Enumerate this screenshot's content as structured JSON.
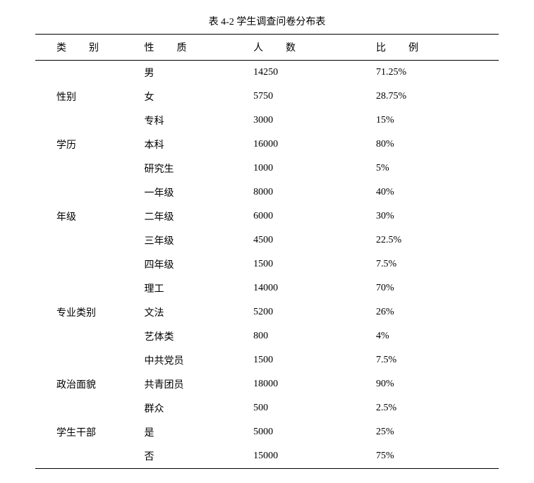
{
  "title": "表 4-2  学生调查问卷分布表",
  "headers": {
    "category": "类别",
    "property": "性质",
    "count": "人数",
    "ratio": "比例"
  },
  "groups": [
    {
      "category": "性别",
      "label_row": 1,
      "rows": [
        {
          "property": "男",
          "count": "14250",
          "ratio": "71.25%"
        },
        {
          "property": "女",
          "count": "5750",
          "ratio": "28.75%"
        }
      ]
    },
    {
      "category": "学历",
      "label_row": 1,
      "rows": [
        {
          "property": "专科",
          "count": "3000",
          "ratio": "15%"
        },
        {
          "property": "本科",
          "count": "16000",
          "ratio": "80%"
        },
        {
          "property": "研究生",
          "count": "1000",
          "ratio": "5%"
        }
      ]
    },
    {
      "category": "年级",
      "label_row": 1,
      "rows": [
        {
          "property": "一年级",
          "count": "8000",
          "ratio": "40%"
        },
        {
          "property": "二年级",
          "count": "6000",
          "ratio": "30%"
        },
        {
          "property": "三年级",
          "count": "4500",
          "ratio": "22.5%"
        },
        {
          "property": "四年级",
          "count": "1500",
          "ratio": "7.5%"
        }
      ]
    },
    {
      "category": "专业类别",
      "label_row": 1,
      "rows": [
        {
          "property": "理工",
          "count": "14000",
          "ratio": "70%"
        },
        {
          "property": "文法",
          "count": "5200",
          "ratio": "26%"
        },
        {
          "property": "艺体类",
          "count": "800",
          "ratio": "4%"
        }
      ]
    },
    {
      "category": "政治面貌",
      "label_row": 1,
      "rows": [
        {
          "property": "中共党员",
          "count": "1500",
          "ratio": "7.5%"
        },
        {
          "property": "共青团员",
          "count": "18000",
          "ratio": "90%"
        },
        {
          "property": "群众",
          "count": "500",
          "ratio": "2.5%"
        }
      ]
    },
    {
      "category": "学生干部",
      "label_row": 0,
      "rows": [
        {
          "property": "是",
          "count": "5000",
          "ratio": "25%"
        },
        {
          "property": "否",
          "count": "15000",
          "ratio": "75%"
        }
      ]
    }
  ]
}
